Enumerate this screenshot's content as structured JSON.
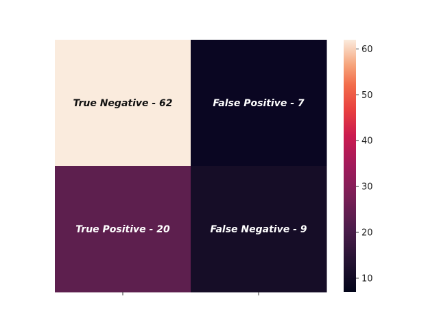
{
  "chart_data": {
    "type": "heatmap",
    "title": "",
    "xlabel": "",
    "ylabel": "",
    "rows": 2,
    "cols": 2,
    "cells": [
      {
        "row": 0,
        "col": 0,
        "value": 62,
        "label": "True Negative - 62"
      },
      {
        "row": 0,
        "col": 1,
        "value": 7,
        "label": "False Positive - 7"
      },
      {
        "row": 1,
        "col": 0,
        "value": 20,
        "label": "True Positive - 20"
      },
      {
        "row": 1,
        "col": 1,
        "value": 9,
        "label": "False Negative - 9"
      }
    ],
    "colorbar": {
      "min": 7,
      "max": 62,
      "ticks": [
        10,
        20,
        30,
        40,
        50,
        60
      ],
      "tick_labels": [
        "10",
        "20",
        "30",
        "40",
        "50",
        "60"
      ],
      "colormap": "rocket"
    },
    "cell_colors": [
      "#faebdd",
      "#0a0622",
      "#5d1f4e",
      "#160d27"
    ],
    "x_tick_labels": [
      "",
      ""
    ],
    "y_tick_labels": [
      "",
      ""
    ],
    "grid": false,
    "colorbar_position": "right"
  }
}
